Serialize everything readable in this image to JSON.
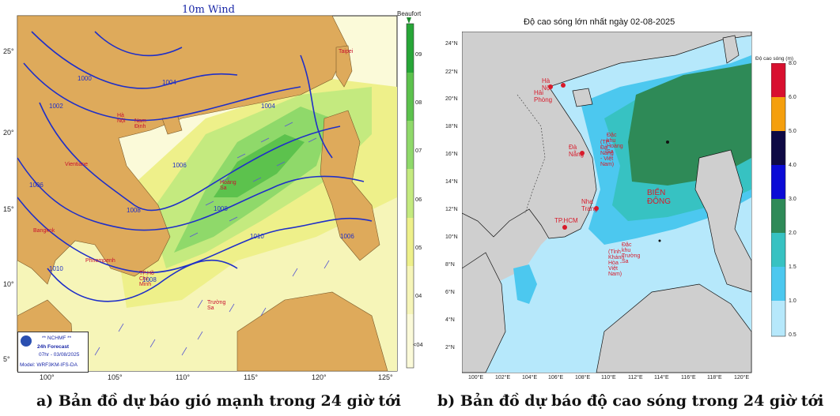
{
  "panel_a": {
    "title": "10m Wind",
    "scale_title": "Beaufort",
    "scale_levels": [
      "09",
      "08",
      "07",
      "06",
      "05",
      "04",
      "<04"
    ],
    "scale_colors": [
      "#27a637",
      "#5cc24d",
      "#8fd96a",
      "#c4ea7f",
      "#eef08a",
      "#f6f5b8",
      "#fbfad9"
    ],
    "lat_labels": [
      "25°",
      "20°",
      "15°",
      "10°",
      "5°"
    ],
    "lon_labels": [
      "100°",
      "105°",
      "110°",
      "115°",
      "120°",
      "125°"
    ],
    "isobar_labels": [
      "1000",
      "1002",
      "1004",
      "1006",
      "1008",
      "1010",
      "1004",
      "1006",
      "1008",
      "1010",
      "1008",
      "1006"
    ],
    "place_labels": [
      "Taipei",
      "Hà Nội",
      "Nam Định",
      "Vientiane",
      "Hoàng Sa",
      "Bangkok",
      "Phnompenh",
      "TP.Hồ Chí Minh",
      "Trường Sa"
    ],
    "info_box": {
      "agency": "** NCHMF **",
      "forecast": "24h Forecast",
      "valid": "07hr - 03/08/2025",
      "model": "Model: WRF3KM-IFS-DA"
    },
    "caption": "a) Bản đồ dự báo gió mạnh trong 24 giờ tới"
  },
  "panel_b": {
    "title": "Độ cao sóng lớn nhất ngày 02-08-2025",
    "legend_title": "Độ cao sóng (m)",
    "legend_levels": [
      "8.0",
      "6.0",
      "5.0",
      "4.0",
      "3.0",
      "2.0",
      "1.5",
      "1.0",
      "0.5"
    ],
    "legend_colors": [
      "#d8102f",
      "#f59f0d",
      "#0f0a45",
      "#0b0bd6",
      "#2e8a57",
      "#37c2c2",
      "#4cc8ef",
      "#b6e8fb"
    ],
    "lat_labels": [
      "24°N",
      "22°N",
      "20°N",
      "18°N",
      "16°N",
      "14°N",
      "12°N",
      "10°N",
      "8°N",
      "6°N",
      "4°N",
      "2°N"
    ],
    "lon_labels": [
      "100°E",
      "102°E",
      "104°E",
      "106°E",
      "108°E",
      "110°E",
      "112°E",
      "114°E",
      "116°E",
      "118°E",
      "120°E"
    ],
    "places": [
      "Hà Nội",
      "Hải Phòng",
      "Đà Nẵng",
      "Nha Trang",
      "TP.HCM"
    ],
    "paracel_label_1": "Đặc khu Hoàng Sa",
    "paracel_label_2": "(TP. Đà Nẵng - Việt Nam)",
    "spratly_label_1": "Đặc khu Trường Sa",
    "spratly_label_2": "(Tỉnh Khánh Hòa - Việt Nam)",
    "sea_label": "BIỂN ĐÔNG",
    "caption": "b) Bản đồ dự báo độ cao sóng trong 24 giờ tới"
  }
}
